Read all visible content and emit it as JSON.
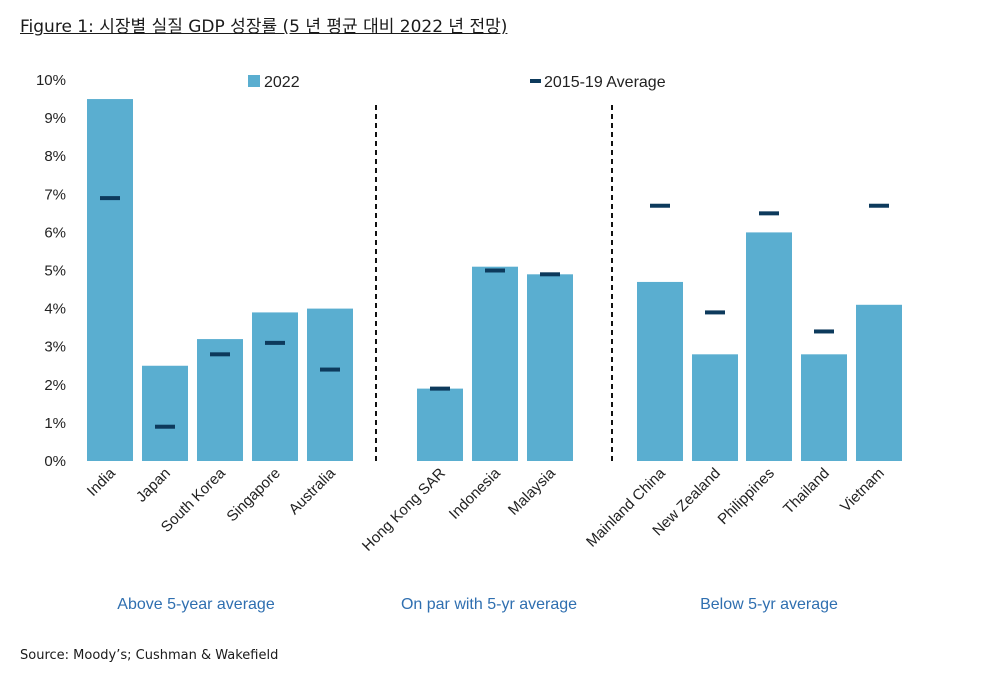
{
  "title": "Figure 1: 시장별 실질 GDP 성장률 (5 년 평균 대비 2022 년 전망)",
  "source": "Source: Moody’s; Cushman & Wakefield",
  "colors": {
    "bar": "#5aaed0",
    "avg": "#0d3a5c",
    "group_label": "#2f6fb0",
    "divider": "#111111"
  },
  "chart_data": {
    "type": "bar",
    "ylim": [
      0,
      10
    ],
    "yticks": [
      "0%",
      "1%",
      "2%",
      "3%",
      "4%",
      "5%",
      "6%",
      "7%",
      "8%",
      "9%",
      "10%"
    ],
    "grid": false,
    "legend_position": "top",
    "categories": [
      "India",
      "Japan",
      "South Korea",
      "Singapore",
      "Australia",
      "Hong Kong SAR",
      "Indonesia",
      "Malaysia",
      "Mainland China",
      "New Zealand",
      "Philippines",
      "Thailand",
      "Vietnam"
    ],
    "series": [
      {
        "name": "2022",
        "kind": "bar",
        "values": [
          9.5,
          2.5,
          3.2,
          3.9,
          4.0,
          1.9,
          5.1,
          4.9,
          4.7,
          2.8,
          6.0,
          2.8,
          4.1
        ]
      },
      {
        "name": "2015-19 Average",
        "kind": "marker",
        "values": [
          6.9,
          0.9,
          2.8,
          3.1,
          2.4,
          1.9,
          5.0,
          4.9,
          6.7,
          3.9,
          6.5,
          3.4,
          6.7
        ]
      }
    ],
    "groups": [
      {
        "label": "Above 5-year average",
        "start": 0,
        "end": 4
      },
      {
        "label": "On par with 5-yr average",
        "start": 5,
        "end": 7
      },
      {
        "label": "Below 5-yr average",
        "start": 8,
        "end": 12
      }
    ]
  }
}
